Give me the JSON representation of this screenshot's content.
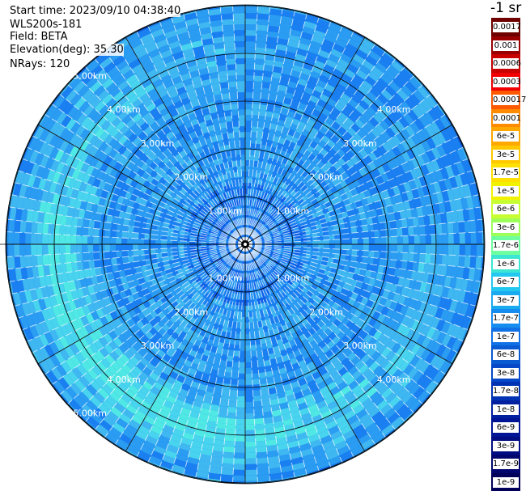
{
  "header": {
    "start_time": "Start time: 2023/09/10 04:38:40",
    "instrument": "WLS200s-181",
    "field": "Field: BETA",
    "elevation": "Elevation(deg): 35.30",
    "nrays": "NRays: 120"
  },
  "colorbar": {
    "unit": "-1 sr",
    "labels": [
      "0.0017",
      "0.001",
      "0.0006",
      "0.0003",
      "0.00017",
      "0.0001",
      "6e-5",
      "3e-5",
      "1.7e-5",
      "1e-5",
      "6e-6",
      "3e-6",
      "1.7e-6",
      "1e-6",
      "6e-7",
      "3e-7",
      "1.7e-7",
      "1e-7",
      "6e-8",
      "3e-8",
      "1.7e-8",
      "1e-8",
      "6e-9",
      "3e-9",
      "1.7e-9",
      "1e-9"
    ],
    "colors": [
      "#6e0000",
      "#9a0000",
      "#c80000",
      "#f00000",
      "#ff5a00",
      "#ff8c00",
      "#ffa800",
      "#ffc800",
      "#ffe000",
      "#f2f200",
      "#c8ff32",
      "#9cff5a",
      "#6effa0",
      "#3ce6d2",
      "#22c8f0",
      "#1aaaf0",
      "#148cf0",
      "#1070e6",
      "#0a5ad2",
      "#0648c8",
      "#0032b4",
      "#0020a0",
      "#001496",
      "#000c82",
      "#00066e",
      "#00005a"
    ]
  },
  "ring_labels": [
    "1.00km",
    "2.00km",
    "3.00km",
    "4.00km",
    "5.00km"
  ],
  "ppi": {
    "n_rays": 120,
    "max_range_km": 5.3,
    "palette": [
      "#1046d8",
      "#1062e8",
      "#1a7ff0",
      "#2a9cf2",
      "#3fb8f2",
      "#48d4ee",
      "#50e8e4"
    ]
  }
}
